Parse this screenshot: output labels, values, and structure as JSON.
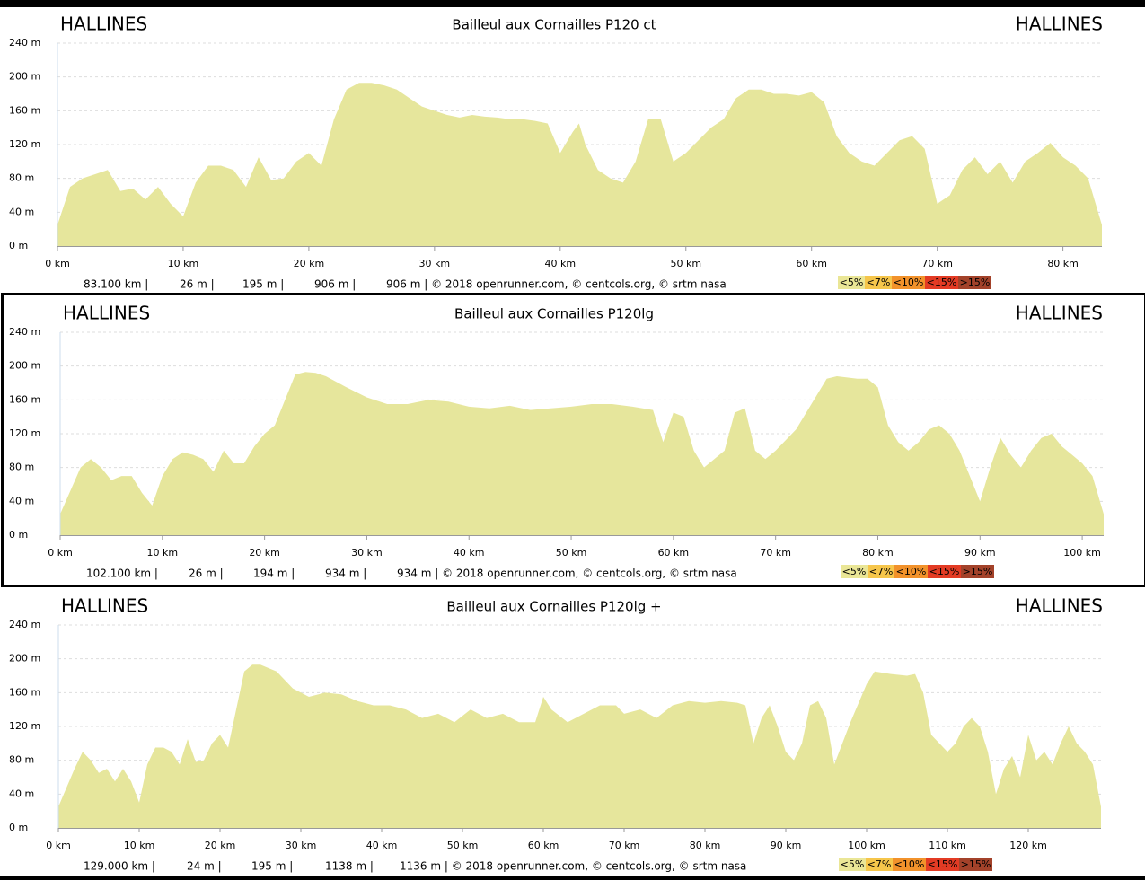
{
  "chart_data": [
    {
      "type": "area",
      "title": "Bailleul aux Cornailles P120 ct",
      "start": "HALLINES",
      "end": "HALLINES",
      "color": "#e6e69c",
      "x": [
        0,
        1,
        2,
        3,
        4,
        5,
        6,
        7,
        8,
        9,
        10,
        11,
        12,
        13,
        14,
        15,
        16,
        17,
        18,
        19,
        20,
        21,
        22,
        23,
        24,
        25,
        26,
        27,
        28,
        29,
        30,
        31,
        32,
        33,
        34,
        35,
        36,
        37,
        38,
        39,
        40,
        41,
        41.5,
        42,
        43,
        44,
        45,
        46,
        47,
        48,
        49,
        50,
        51,
        52,
        53,
        54,
        55,
        56,
        57,
        58,
        59,
        60,
        61,
        62,
        63,
        64,
        65,
        66,
        67,
        68,
        69,
        70,
        71,
        72,
        73,
        74,
        75,
        76,
        77,
        78,
        79,
        80,
        81,
        82,
        83.1
      ],
      "values": [
        25,
        70,
        80,
        85,
        90,
        65,
        68,
        55,
        70,
        50,
        35,
        75,
        95,
        95,
        90,
        70,
        105,
        78,
        80,
        100,
        110,
        95,
        150,
        185,
        193,
        193,
        190,
        185,
        175,
        165,
        160,
        155,
        152,
        155,
        153,
        152,
        150,
        150,
        148,
        145,
        110,
        135,
        145,
        120,
        90,
        80,
        75,
        100,
        150,
        150,
        100,
        110,
        125,
        140,
        150,
        175,
        185,
        185,
        180,
        180,
        178,
        182,
        170,
        130,
        110,
        100,
        95,
        110,
        125,
        130,
        115,
        50,
        60,
        90,
        105,
        85,
        100,
        75,
        100,
        110,
        122,
        105,
        95,
        80,
        25
      ],
      "xlim": [
        0,
        83.1
      ],
      "ylim": [
        0,
        240
      ],
      "xticks": [
        {
          "value": 0,
          "label": "0 km"
        },
        {
          "value": 10,
          "label": "10 km"
        },
        {
          "value": 20,
          "label": "20 km"
        },
        {
          "value": 30,
          "label": "30 km"
        },
        {
          "value": 40,
          "label": "40 km"
        },
        {
          "value": 50,
          "label": "50 km"
        },
        {
          "value": 60,
          "label": "60 km"
        },
        {
          "value": 70,
          "label": "70 km"
        },
        {
          "value": 80,
          "label": "80 km"
        }
      ],
      "yticks": [
        {
          "value": 0,
          "label": "0 m"
        },
        {
          "value": 40,
          "label": "40 m"
        },
        {
          "value": 80,
          "label": "80 m"
        },
        {
          "value": 120,
          "label": "120 m"
        },
        {
          "value": 160,
          "label": "160 m"
        },
        {
          "value": 200,
          "label": "200 m"
        },
        {
          "value": 240,
          "label": "240 m"
        }
      ],
      "grid": true,
      "footer": [
        "83.100 km |",
        "26 m |",
        "195 m |",
        "906 m |",
        "906 m | © 2018 openrunner.com, © centcols.org, © srtm nasa"
      ],
      "legend": [
        {
          "label": "<5%",
          "color": "#eae696"
        },
        {
          "label": "<7%",
          "color": "#f6c64b"
        },
        {
          "label": "<10%",
          "color": "#f2922b"
        },
        {
          "label": "<15%",
          "color": "#e33b24"
        },
        {
          "label": ">15%",
          "color": "#a3422a"
        }
      ]
    },
    {
      "type": "area",
      "title": "Bailleul aux Cornailles P120lg",
      "start": "HALLINES",
      "end": "HALLINES",
      "color": "#e6e69c",
      "x": [
        0,
        2,
        3,
        4,
        5,
        6,
        7,
        8,
        9,
        10,
        11,
        12,
        13,
        14,
        15,
        16,
        17,
        18,
        19,
        20,
        21,
        22,
        23,
        24,
        25,
        26,
        28,
        30,
        32,
        34,
        36,
        38,
        40,
        42,
        44,
        46,
        48,
        50,
        52,
        54,
        56,
        58,
        59,
        60,
        61,
        62,
        63,
        64,
        65,
        66,
        67,
        68,
        69,
        70,
        72,
        74,
        75,
        76,
        78,
        79,
        80,
        81,
        82,
        83,
        84,
        85,
        86,
        87,
        88,
        89,
        90,
        91,
        92,
        93,
        94,
        95,
        96,
        97,
        98,
        99,
        100,
        101,
        102.1
      ],
      "values": [
        25,
        80,
        90,
        80,
        65,
        70,
        70,
        50,
        35,
        70,
        90,
        98,
        95,
        90,
        75,
        100,
        85,
        85,
        105,
        120,
        130,
        160,
        190,
        193,
        192,
        188,
        175,
        163,
        155,
        155,
        160,
        158,
        152,
        150,
        153,
        148,
        150,
        152,
        155,
        155,
        152,
        148,
        110,
        145,
        140,
        100,
        80,
        90,
        100,
        145,
        150,
        100,
        90,
        100,
        125,
        165,
        185,
        188,
        185,
        185,
        175,
        130,
        110,
        100,
        110,
        125,
        130,
        120,
        100,
        70,
        40,
        80,
        115,
        95,
        80,
        100,
        115,
        120,
        105,
        95,
        85,
        70,
        25
      ],
      "xlim": [
        0,
        102.1
      ],
      "ylim": [
        0,
        240
      ],
      "xticks": [
        {
          "value": 0,
          "label": "0 km"
        },
        {
          "value": 10,
          "label": "10 km"
        },
        {
          "value": 20,
          "label": "20 km"
        },
        {
          "value": 30,
          "label": "30 km"
        },
        {
          "value": 40,
          "label": "40 km"
        },
        {
          "value": 50,
          "label": "50 km"
        },
        {
          "value": 60,
          "label": "60 km"
        },
        {
          "value": 70,
          "label": "70 km"
        },
        {
          "value": 80,
          "label": "80 km"
        },
        {
          "value": 90,
          "label": "90 km"
        },
        {
          "value": 100,
          "label": "100 km"
        }
      ],
      "yticks": [
        {
          "value": 0,
          "label": "0 m"
        },
        {
          "value": 40,
          "label": "40 m"
        },
        {
          "value": 80,
          "label": "80 m"
        },
        {
          "value": 120,
          "label": "120 m"
        },
        {
          "value": 160,
          "label": "160 m"
        },
        {
          "value": 200,
          "label": "200 m"
        },
        {
          "value": 240,
          "label": "240 m"
        }
      ],
      "grid": true,
      "footer": [
        "102.100 km |",
        "26 m |",
        "194 m |",
        "934 m |",
        "934 m | © 2018 openrunner.com, © centcols.org, © srtm nasa"
      ],
      "legend": [
        {
          "label": "<5%",
          "color": "#eae696"
        },
        {
          "label": "<7%",
          "color": "#f6c64b"
        },
        {
          "label": "<10%",
          "color": "#f2922b"
        },
        {
          "label": "<15%",
          "color": "#e33b24"
        },
        {
          "label": ">15%",
          "color": "#a3422a"
        }
      ]
    },
    {
      "type": "area",
      "title": "Bailleul aux Cornailles P120lg +",
      "start": "HALLINES",
      "end": "HALLINES",
      "color": "#e6e69c",
      "x": [
        0,
        2,
        3,
        4,
        5,
        6,
        7,
        8,
        9,
        10,
        11,
        12,
        13,
        14,
        15,
        16,
        17,
        18,
        19,
        20,
        21,
        22,
        23,
        24,
        25,
        27,
        29,
        31,
        33,
        35,
        37,
        39,
        41,
        43,
        45,
        47,
        49,
        51,
        53,
        55,
        57,
        59,
        60,
        61,
        63,
        65,
        67,
        69,
        70,
        72,
        74,
        76,
        78,
        80,
        82,
        84,
        85,
        86,
        87,
        88,
        89,
        90,
        91,
        92,
        93,
        94,
        95,
        96,
        98,
        100,
        101,
        103,
        105,
        106,
        107,
        108,
        110,
        111,
        112,
        113,
        114,
        115,
        116,
        117,
        118,
        119,
        120,
        121,
        122,
        123,
        124,
        125,
        126,
        127,
        128,
        129
      ],
      "values": [
        25,
        70,
        90,
        80,
        65,
        70,
        55,
        70,
        55,
        30,
        75,
        95,
        95,
        90,
        75,
        105,
        78,
        80,
        100,
        110,
        95,
        140,
        185,
        193,
        193,
        185,
        165,
        155,
        160,
        158,
        150,
        145,
        145,
        140,
        130,
        135,
        125,
        140,
        130,
        135,
        125,
        125,
        155,
        140,
        125,
        135,
        145,
        145,
        135,
        140,
        130,
        145,
        150,
        148,
        150,
        148,
        145,
        100,
        130,
        145,
        120,
        90,
        80,
        100,
        145,
        150,
        130,
        75,
        125,
        170,
        185,
        182,
        180,
        182,
        160,
        110,
        90,
        100,
        120,
        130,
        120,
        90,
        40,
        70,
        85,
        60,
        110,
        80,
        90,
        75,
        100,
        120,
        100,
        90,
        75,
        25
      ],
      "xlim": [
        0,
        129
      ],
      "ylim": [
        0,
        240
      ],
      "xticks": [
        {
          "value": 0,
          "label": "0 km"
        },
        {
          "value": 10,
          "label": "10 km"
        },
        {
          "value": 20,
          "label": "20 km"
        },
        {
          "value": 30,
          "label": "30 km"
        },
        {
          "value": 40,
          "label": "40 km"
        },
        {
          "value": 50,
          "label": "50 km"
        },
        {
          "value": 60,
          "label": "60 km"
        },
        {
          "value": 70,
          "label": "70 km"
        },
        {
          "value": 80,
          "label": "80 km"
        },
        {
          "value": 90,
          "label": "90 km"
        },
        {
          "value": 100,
          "label": "100 km"
        },
        {
          "value": 110,
          "label": "110 km"
        },
        {
          "value": 120,
          "label": "120 km"
        }
      ],
      "yticks": [
        {
          "value": 0,
          "label": "0 m"
        },
        {
          "value": 40,
          "label": "40 m"
        },
        {
          "value": 80,
          "label": "80 m"
        },
        {
          "value": 120,
          "label": "120 m"
        },
        {
          "value": 160,
          "label": "160 m"
        },
        {
          "value": 200,
          "label": "200 m"
        },
        {
          "value": 240,
          "label": "240 m"
        }
      ],
      "grid": true,
      "footer": [
        "129.000 km |",
        "24 m |",
        "195 m |",
        "1138 m |",
        "1136 m | © 2018 openrunner.com, © centcols.org, © srtm nasa"
      ],
      "legend": [
        {
          "label": "<5%",
          "color": "#eae696"
        },
        {
          "label": "<7%",
          "color": "#f6c64b"
        },
        {
          "label": "<10%",
          "color": "#f2922b"
        },
        {
          "label": "<15%",
          "color": "#e33b24"
        },
        {
          "label": ">15%",
          "color": "#a3422a"
        }
      ]
    }
  ]
}
